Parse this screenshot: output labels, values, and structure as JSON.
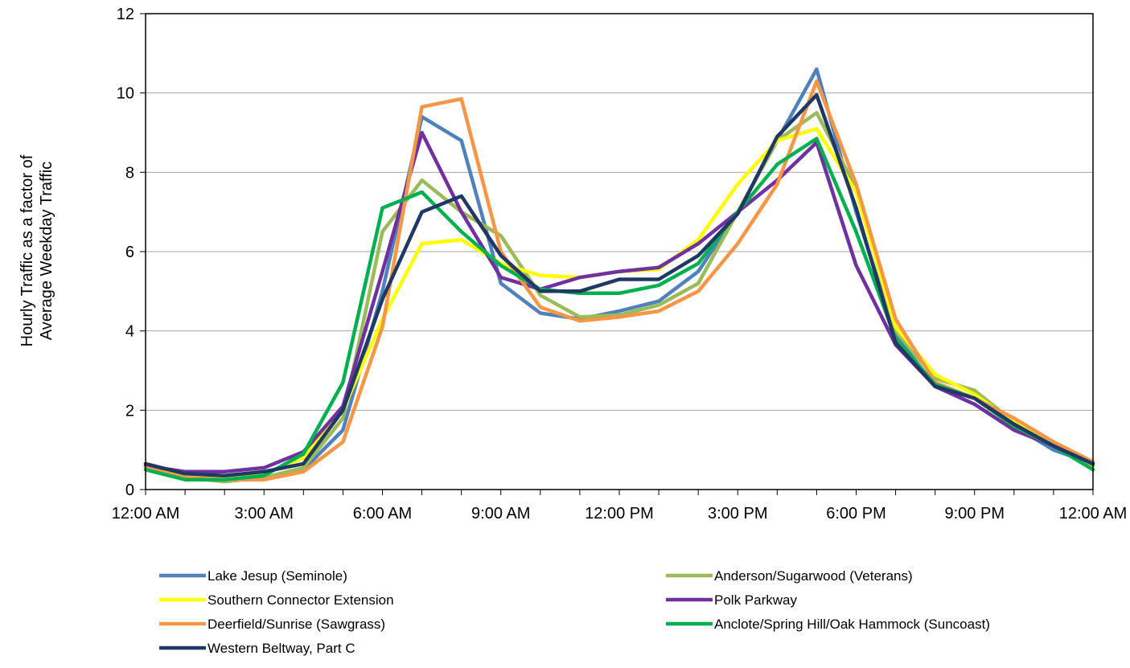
{
  "chart_data": {
    "type": "line",
    "title": "",
    "xlabel": "",
    "ylabel_lines": [
      "Hourly Traffic as a factor of",
      "Average Weekday Traffic"
    ],
    "xlim": [
      0,
      24
    ],
    "ylim": [
      0,
      12
    ],
    "y_ticks": [
      0,
      2,
      4,
      6,
      8,
      10,
      12
    ],
    "x_tick_labels": [
      "12:00 AM",
      "3:00 AM",
      "6:00 AM",
      "9:00 AM",
      "12:00 PM",
      "3:00 PM",
      "6:00 PM",
      "9:00 PM",
      "12:00 AM"
    ],
    "x_tick_positions": [
      0,
      3,
      6,
      9,
      12,
      15,
      18,
      21,
      24
    ],
    "grid": "horizontal",
    "legend_position": "bottom",
    "x": [
      0,
      1,
      2,
      3,
      4,
      5,
      6,
      7,
      8,
      9,
      10,
      11,
      12,
      13,
      14,
      15,
      16,
      17,
      18,
      19,
      20,
      21,
      22,
      23,
      24
    ],
    "series": [
      {
        "name": "Lake Jesup (Seminole)",
        "color": "#4f81bd",
        "values": [
          0.6,
          0.3,
          0.25,
          0.3,
          0.5,
          1.5,
          5.0,
          9.4,
          8.8,
          5.2,
          4.45,
          4.3,
          4.5,
          4.75,
          5.5,
          7.0,
          8.8,
          10.6,
          7.0,
          3.9,
          2.6,
          2.3,
          1.6,
          1.0,
          0.65
        ]
      },
      {
        "name": "Anderson/Sugarwood (Veterans)",
        "color": "#9bbb59",
        "values": [
          0.55,
          0.3,
          0.2,
          0.3,
          0.55,
          1.8,
          6.5,
          7.8,
          7.0,
          6.4,
          4.9,
          4.35,
          4.4,
          4.65,
          5.2,
          7.0,
          8.8,
          9.5,
          7.6,
          4.0,
          2.8,
          2.5,
          1.7,
          1.1,
          0.6
        ]
      },
      {
        "name": "Southern Connector Extension",
        "color": "#ffff00",
        "values": [
          0.6,
          0.35,
          0.3,
          0.4,
          0.8,
          2.0,
          4.3,
          6.2,
          6.3,
          5.7,
          5.4,
          5.35,
          5.5,
          5.55,
          6.3,
          7.7,
          8.8,
          9.1,
          7.5,
          4.1,
          2.9,
          2.4,
          1.7,
          1.2,
          0.7
        ]
      },
      {
        "name": "Polk Parkway",
        "color": "#7030a0",
        "values": [
          0.6,
          0.45,
          0.45,
          0.55,
          0.95,
          2.1,
          5.5,
          9.0,
          7.0,
          5.35,
          5.05,
          5.35,
          5.5,
          5.6,
          6.2,
          7.0,
          7.8,
          8.75,
          5.65,
          3.65,
          2.6,
          2.15,
          1.5,
          1.1,
          0.65
        ]
      },
      {
        "name": "Deerfield/Sunrise (Sawgrass)",
        "color": "#f79646",
        "values": [
          0.55,
          0.3,
          0.25,
          0.25,
          0.45,
          1.2,
          4.1,
          9.65,
          9.85,
          6.0,
          4.6,
          4.25,
          4.35,
          4.5,
          5.0,
          6.2,
          7.7,
          10.3,
          7.7,
          4.3,
          2.7,
          2.3,
          1.8,
          1.2,
          0.7
        ]
      },
      {
        "name": "Anclote/Spring Hill/Oak Hammock (Suncoast)",
        "color": "#00b050",
        "values": [
          0.5,
          0.25,
          0.25,
          0.35,
          0.9,
          2.7,
          7.1,
          7.5,
          6.5,
          5.65,
          5.05,
          4.95,
          4.95,
          5.15,
          5.7,
          7.0,
          8.2,
          8.85,
          6.5,
          3.8,
          2.65,
          2.3,
          1.6,
          1.1,
          0.5
        ]
      },
      {
        "name": "Western Beltway, Part C",
        "color": "#1f3864",
        "values": [
          0.65,
          0.4,
          0.35,
          0.45,
          0.65,
          2.0,
          4.8,
          7.0,
          7.4,
          5.9,
          5.0,
          5.0,
          5.3,
          5.3,
          5.9,
          6.95,
          8.9,
          9.95,
          7.1,
          3.7,
          2.6,
          2.3,
          1.65,
          1.1,
          0.65
        ]
      }
    ]
  }
}
